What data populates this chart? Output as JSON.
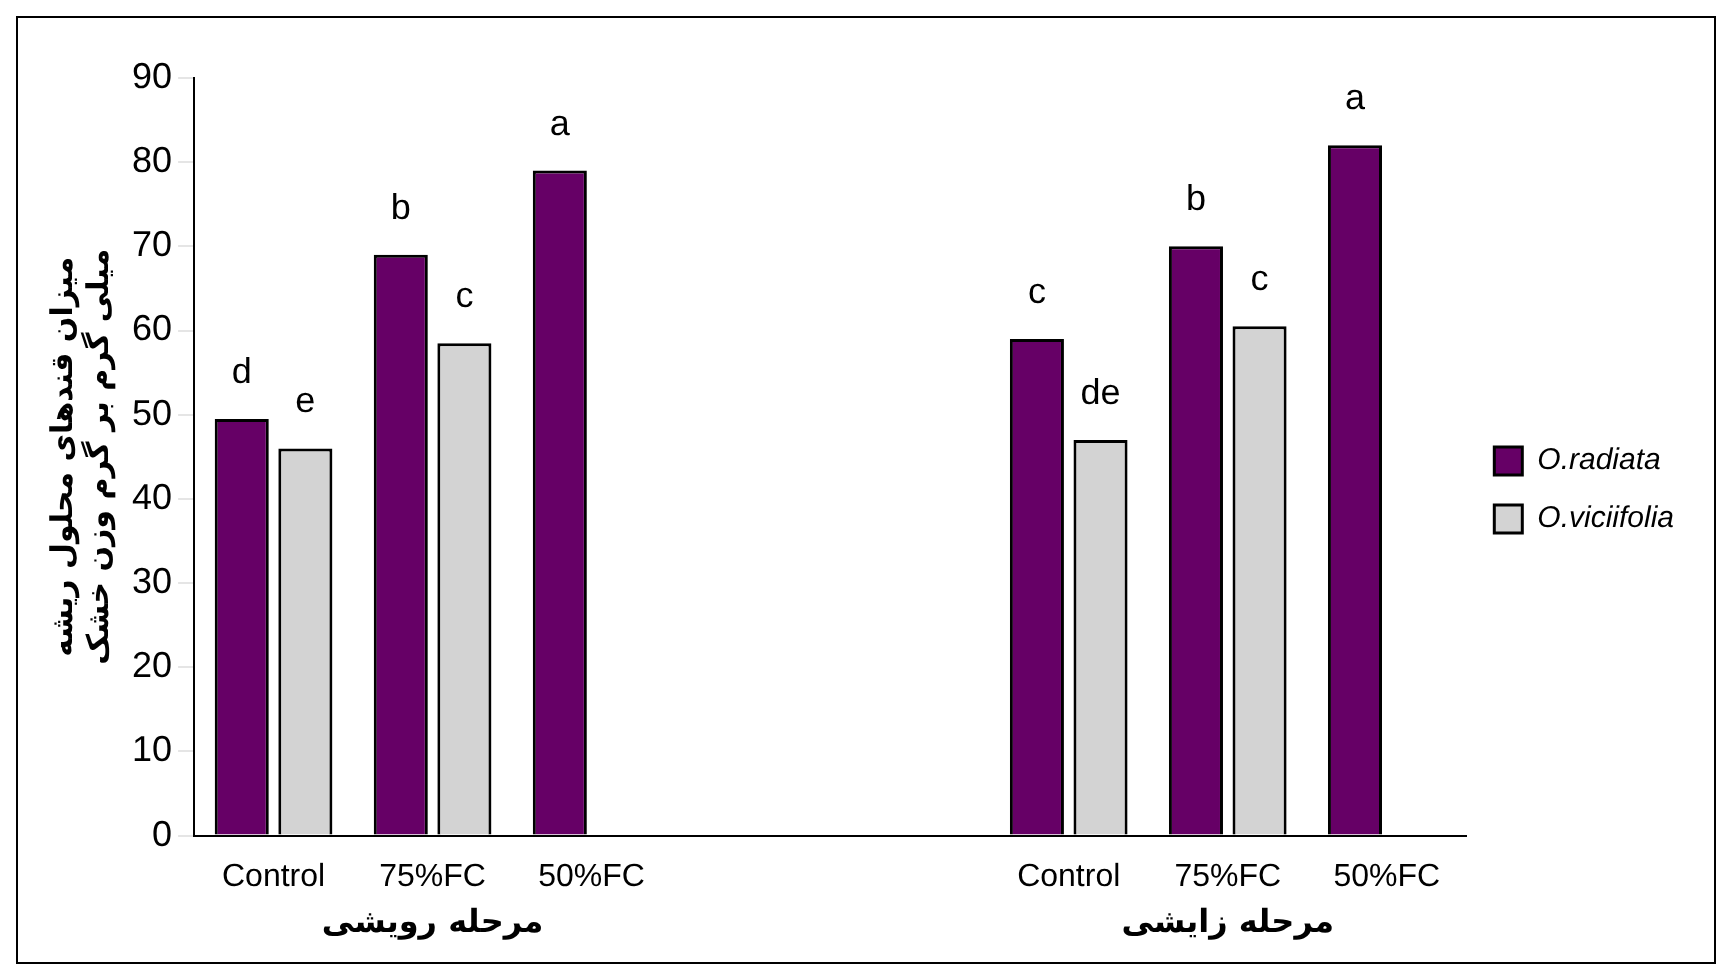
{
  "chart_data": {
    "type": "bar",
    "ylabel": "میزان قندهای محلول ریشه\nمیلی گرم بر گرم وزن خشک",
    "categories": [
      "Control",
      "75%FC",
      "50%FC",
      null,
      null,
      "Control",
      "75%FC",
      "50%FC"
    ],
    "series": [
      {
        "name": "O.radiata",
        "color": "#660066",
        "values": [
          49.5,
          69,
          79,
          null,
          null,
          59,
          70,
          82
        ],
        "value_labels": [
          "d",
          "b",
          "a",
          null,
          null,
          "c",
          "b",
          "a"
        ]
      },
      {
        "name": "O.viciifolia",
        "color": "#d3d3d3",
        "values": [
          46,
          58.5,
          null,
          null,
          null,
          47,
          60.5,
          null
        ],
        "value_labels": [
          "e",
          "c",
          null,
          null,
          null,
          "de",
          "c",
          null
        ]
      }
    ],
    "annotations": [
      "مرحله رویشی",
      "مرحله زایشی"
    ],
    "ylim": [
      0,
      90
    ],
    "yticks": [
      0,
      10,
      20,
      30,
      40,
      50,
      60,
      70,
      80,
      90
    ],
    "grid": false,
    "legend": "right"
  }
}
